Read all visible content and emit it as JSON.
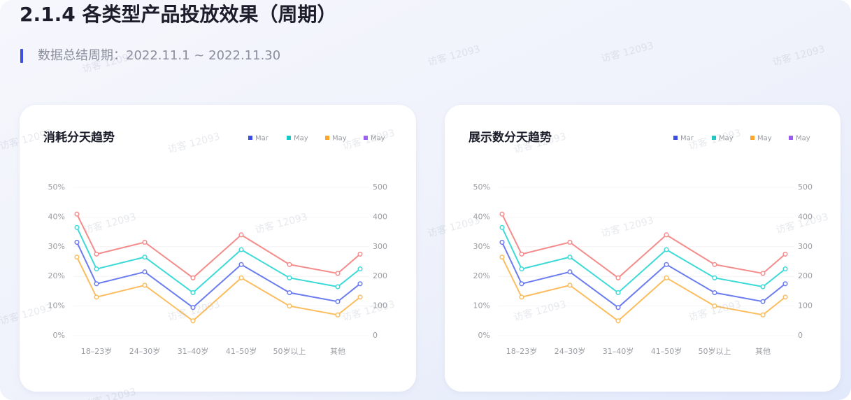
{
  "header": {
    "title": "2.1.4 各类型产品投放效果（周期）",
    "subtitle": "数据总结周期：2022.11.1 ~ 2022.11.30",
    "watermark": "访客 12093"
  },
  "chart_data": [
    {
      "type": "line",
      "title": "消耗分天趋势",
      "categories": [
        null,
        "18–23岁",
        "24–30岁",
        "31–40岁",
        "41–50岁",
        "50岁以上",
        "其他",
        null
      ],
      "series": [
        {
          "name": "Mar",
          "color": "#6b7cf0",
          "legend_color": "#3d4fe0",
          "values": [
            31.5,
            17.5,
            21.5,
            9.5,
            24,
            14.5,
            11.5,
            17.5
          ]
        },
        {
          "name": "May",
          "color": "#3ddad7",
          "legend_color": "#19c9c4",
          "values": [
            36.5,
            22.5,
            26.5,
            14.5,
            29,
            19.5,
            16.5,
            22.5
          ]
        },
        {
          "name": "May",
          "color": "#fbbd5e",
          "legend_color": "#ffa52b",
          "values": [
            26.5,
            13,
            17,
            5,
            19.5,
            10,
            7,
            13
          ]
        },
        {
          "name": "May",
          "color": "#f48c8c",
          "legend_color": "#9b5cf0",
          "values": [
            41,
            27.5,
            31.5,
            19.5,
            34,
            24,
            21,
            27.5
          ]
        }
      ],
      "ylim": [
        0,
        50
      ],
      "yticks": [
        {
          "value": 0,
          "label": "0%"
        },
        {
          "value": 10,
          "label": "10%"
        },
        {
          "value": 20,
          "label": "20%"
        },
        {
          "value": 30,
          "label": "30%"
        },
        {
          "value": 40,
          "label": "40%"
        },
        {
          "value": 50,
          "label": "50%"
        }
      ],
      "y2lim": [
        0,
        500
      ],
      "y2ticks": [
        0,
        100,
        200,
        300,
        400,
        500
      ],
      "grid": true
    },
    {
      "type": "line",
      "title": "展示数分天趋势",
      "categories": [
        null,
        "18–23岁",
        "24–30岁",
        "31–40岁",
        "41–50岁",
        "50岁以上",
        "其他",
        null
      ],
      "series": [
        {
          "name": "Mar",
          "color": "#6b7cf0",
          "legend_color": "#3d4fe0",
          "values": [
            31.5,
            17.5,
            21.5,
            9.5,
            24,
            14.5,
            11.5,
            17.5
          ]
        },
        {
          "name": "May",
          "color": "#3ddad7",
          "legend_color": "#19c9c4",
          "values": [
            36.5,
            22.5,
            26.5,
            14.5,
            29,
            19.5,
            16.5,
            22.5
          ]
        },
        {
          "name": "May",
          "color": "#fbbd5e",
          "legend_color": "#ffa52b",
          "values": [
            26.5,
            13,
            17,
            5,
            19.5,
            10,
            7,
            13
          ]
        },
        {
          "name": "May",
          "color": "#f48c8c",
          "legend_color": "#9b5cf0",
          "values": [
            41,
            27.5,
            31.5,
            19.5,
            34,
            24,
            21,
            27.5
          ]
        }
      ],
      "ylim": [
        0,
        50
      ],
      "yticks": [
        {
          "value": 0,
          "label": "0%"
        },
        {
          "value": 10,
          "label": "10%"
        },
        {
          "value": 20,
          "label": "20%"
        },
        {
          "value": 30,
          "label": "30%"
        },
        {
          "value": 40,
          "label": "40%"
        },
        {
          "value": 50,
          "label": "50%"
        }
      ],
      "y2lim": [
        0,
        500
      ],
      "y2ticks": [
        0,
        100,
        200,
        300,
        400,
        500
      ],
      "grid": true
    }
  ]
}
